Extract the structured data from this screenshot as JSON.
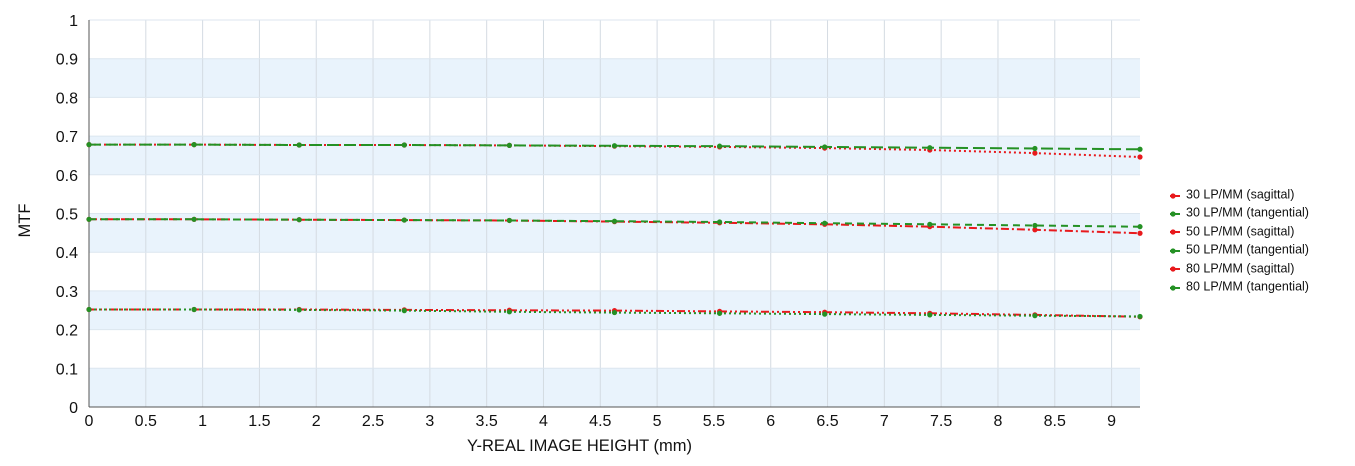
{
  "chart_data": {
    "type": "line",
    "title": "",
    "xlabel": "Y-REAL IMAGE HEIGHT (mm)",
    "ylabel": "MTF",
    "xlim": [
      0,
      9.25
    ],
    "ylim": [
      0,
      1
    ],
    "x_ticks": [
      "0",
      "0.5",
      "1",
      "1.5",
      "2",
      "2.5",
      "3",
      "3.5",
      "4",
      "4.5",
      "5",
      "5.5",
      "6",
      "6.5",
      "7",
      "7.5",
      "8",
      "8.5",
      "9"
    ],
    "y_ticks": [
      "0",
      "0.1",
      "0.2",
      "0.3",
      "0.4",
      "0.5",
      "0.6",
      "0.7",
      "0.8",
      "0.9",
      "1"
    ],
    "grid": true,
    "legend_position": "right",
    "x": [
      0,
      0.925,
      1.85,
      2.775,
      3.7,
      4.625,
      5.55,
      6.475,
      7.4,
      8.325,
      9.25
    ],
    "series": [
      {
        "name": "30 LP/MM (sagittal)",
        "color": "#e8191c",
        "style": "dotted",
        "values": [
          0.678,
          0.678,
          0.677,
          0.677,
          0.676,
          0.674,
          0.672,
          0.669,
          0.664,
          0.656,
          0.646
        ]
      },
      {
        "name": "30 LP/MM (tangential)",
        "color": "#249124",
        "style": "long-dash",
        "values": [
          0.678,
          0.678,
          0.677,
          0.677,
          0.676,
          0.675,
          0.674,
          0.672,
          0.67,
          0.668,
          0.666
        ]
      },
      {
        "name": "50 LP/MM (sagittal)",
        "color": "#e8191c",
        "style": "dash-dot",
        "values": [
          0.485,
          0.485,
          0.484,
          0.483,
          0.482,
          0.479,
          0.476,
          0.472,
          0.466,
          0.458,
          0.449
        ]
      },
      {
        "name": "50 LP/MM (tangential)",
        "color": "#249124",
        "style": "dash",
        "values": [
          0.485,
          0.485,
          0.484,
          0.483,
          0.482,
          0.48,
          0.478,
          0.475,
          0.472,
          0.469,
          0.466
        ]
      },
      {
        "name": "80 LP/MM (sagittal)",
        "color": "#e8191c",
        "style": "dash-dot-dot",
        "values": [
          0.252,
          0.252,
          0.252,
          0.251,
          0.25,
          0.249,
          0.247,
          0.245,
          0.242,
          0.238,
          0.233
        ]
      },
      {
        "name": "80 LP/MM (tangential)",
        "color": "#249124",
        "style": "dotted",
        "values": [
          0.252,
          0.252,
          0.251,
          0.249,
          0.246,
          0.244,
          0.242,
          0.24,
          0.238,
          0.236,
          0.234
        ]
      }
    ]
  }
}
